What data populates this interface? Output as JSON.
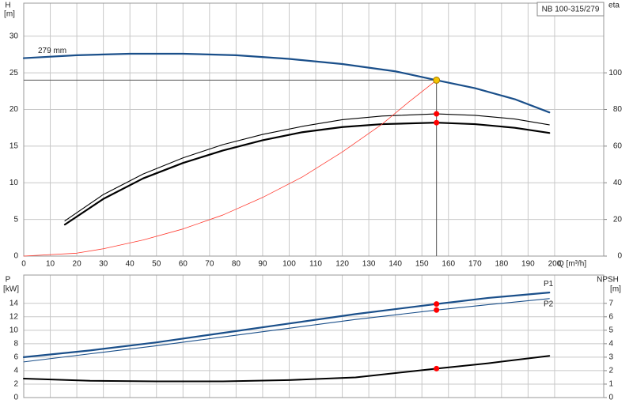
{
  "chart_data": [
    {
      "type": "line",
      "title": "NB 100-315/279",
      "ylabel": "H",
      "yunit": "[m]",
      "y2label": "eta",
      "xlabel": "Q [m³/h]",
      "xlim": [
        0,
        218.5
      ],
      "xticks": [
        0,
        10,
        20,
        30,
        40,
        50,
        60,
        70,
        80,
        90,
        100,
        110,
        120,
        130,
        140,
        150,
        160,
        170,
        180,
        190,
        200
      ],
      "ylim": [
        0,
        34.5
      ],
      "yticks": [
        0,
        5,
        10,
        15,
        20,
        25,
        30
      ],
      "y2lim": [
        0,
        138
      ],
      "y2ticks": [
        0,
        20,
        40,
        60,
        80,
        100
      ],
      "grid": true,
      "series": [
        {
          "name": "279 mm",
          "color": "#1a4f8a",
          "x": [
            0,
            20,
            40,
            60,
            80,
            100,
            120,
            140,
            155.5,
            170,
            185,
            198
          ],
          "values": [
            27.0,
            27.4,
            27.6,
            27.6,
            27.4,
            26.9,
            26.2,
            25.2,
            24.0,
            22.9,
            21.4,
            19.6
          ]
        },
        {
          "color": "#000000",
          "axis": "y2",
          "x": [
            15.5,
            30,
            45,
            60,
            75,
            90,
            105,
            120,
            135,
            155.5,
            170,
            185,
            198
          ],
          "values": [
            19.2,
            33.6,
            44.8,
            53.6,
            60.8,
            66.4,
            70.8,
            74.4,
            76.4,
            77.6,
            76.8,
            74.8,
            71.6
          ]
        },
        {
          "color": "#000000",
          "axis": "y2",
          "x": [
            15.5,
            30,
            45,
            60,
            75,
            90,
            105,
            120,
            135,
            155.5,
            170,
            185,
            198
          ],
          "values": [
            17.2,
            31.2,
            42.4,
            50.8,
            57.6,
            63.2,
            67.6,
            70.4,
            72.0,
            72.8,
            72.0,
            70.0,
            67.2
          ]
        },
        {
          "color": "#ff3b30",
          "x": [
            0,
            20,
            30,
            45,
            60,
            75,
            90,
            105,
            120,
            135,
            145,
            155.5
          ],
          "values": [
            0,
            0.4,
            1.0,
            2.2,
            3.7,
            5.6,
            8.0,
            10.8,
            14.2,
            18.0,
            21.0,
            24.0
          ]
        }
      ],
      "points": [
        {
          "x": 155.5,
          "y": 77.6,
          "axis": "y2",
          "color": "#ff0000"
        },
        {
          "x": 155.5,
          "y": 72.8,
          "axis": "y2",
          "color": "#ff0000"
        },
        {
          "x": 155.5,
          "y": 24.0,
          "color": "#f5c400",
          "duty": true
        }
      ]
    },
    {
      "type": "line",
      "ylabel": "P",
      "yunit": "[kW]",
      "y2label": "NPSH",
      "y2unit": "[m]",
      "xlim": [
        0,
        218.5
      ],
      "xticks": [
        0,
        10,
        20,
        30,
        40,
        50,
        60,
        70,
        80,
        90,
        100,
        110,
        120,
        130,
        140,
        150,
        160,
        170,
        180,
        190,
        200
      ],
      "ylim": [
        0,
        18.2
      ],
      "yticks": [
        0,
        2,
        4,
        6,
        8,
        10,
        12,
        14
      ],
      "y2lim": [
        0,
        9.1
      ],
      "y2ticks": [
        0,
        1,
        2,
        3,
        4,
        5,
        6,
        7
      ],
      "grid": true,
      "series": [
        {
          "name": "P1",
          "color": "#1a4f8a",
          "x": [
            0,
            25,
            50,
            75,
            100,
            125,
            155.5,
            175,
            198
          ],
          "values": [
            6.0,
            7.0,
            8.2,
            9.6,
            11.0,
            12.4,
            13.9,
            14.8,
            15.6
          ]
        },
        {
          "name": "P2",
          "color": "#1a4f8a",
          "x": [
            0,
            25,
            50,
            75,
            100,
            125,
            155.5,
            175,
            198
          ],
          "values": [
            5.3,
            6.5,
            7.7,
            9.0,
            10.3,
            11.6,
            13.0,
            13.8,
            14.7
          ]
        },
        {
          "color": "#000000",
          "axis": "y2",
          "x": [
            0,
            25,
            50,
            75,
            100,
            125,
            155.5,
            175,
            198
          ],
          "values": [
            1.41,
            1.25,
            1.2,
            1.2,
            1.3,
            1.5,
            2.15,
            2.55,
            3.1
          ]
        }
      ],
      "points": [
        {
          "x": 155.5,
          "y": 13.9,
          "color": "#ff0000"
        },
        {
          "x": 155.5,
          "y": 13.0,
          "color": "#ff0000"
        },
        {
          "x": 155.5,
          "y": 2.15,
          "axis": "y2",
          "color": "#ff0000"
        }
      ]
    }
  ]
}
